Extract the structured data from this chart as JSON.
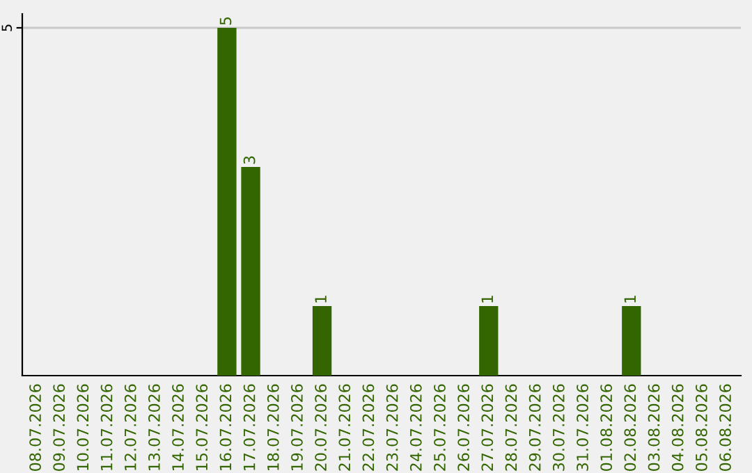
{
  "chart_data": {
    "type": "bar",
    "categories": [
      "08.07.2026",
      "09.07.2026",
      "10.07.2026",
      "11.07.2026",
      "12.07.2026",
      "13.07.2026",
      "14.07.2026",
      "15.07.2026",
      "16.07.2026",
      "17.07.2026",
      "18.07.2026",
      "19.07.2026",
      "20.07.2026",
      "21.07.2026",
      "22.07.2026",
      "23.07.2026",
      "24.07.2026",
      "25.07.2026",
      "26.07.2026",
      "27.07.2026",
      "28.07.2026",
      "29.07.2026",
      "30.07.2026",
      "31.07.2026",
      "01.08.2026",
      "02.08.2026",
      "03.08.2026",
      "04.08.2026",
      "05.08.2026",
      "06.08.2026"
    ],
    "values": [
      0,
      0,
      0,
      0,
      0,
      0,
      0,
      0,
      5,
      3,
      0,
      0,
      1,
      0,
      0,
      0,
      0,
      0,
      0,
      1,
      0,
      0,
      0,
      0,
      0,
      1,
      0,
      0,
      0,
      0
    ],
    "value_labels": [
      null,
      null,
      null,
      null,
      null,
      null,
      null,
      null,
      "5",
      "3",
      null,
      null,
      "1",
      null,
      null,
      null,
      null,
      null,
      null,
      "1",
      null,
      null,
      null,
      null,
      null,
      "1",
      null,
      null,
      null,
      null
    ],
    "color": "#336600",
    "ylim": [
      0,
      5.2
    ],
    "yticks": [
      5
    ],
    "grid": "y"
  }
}
